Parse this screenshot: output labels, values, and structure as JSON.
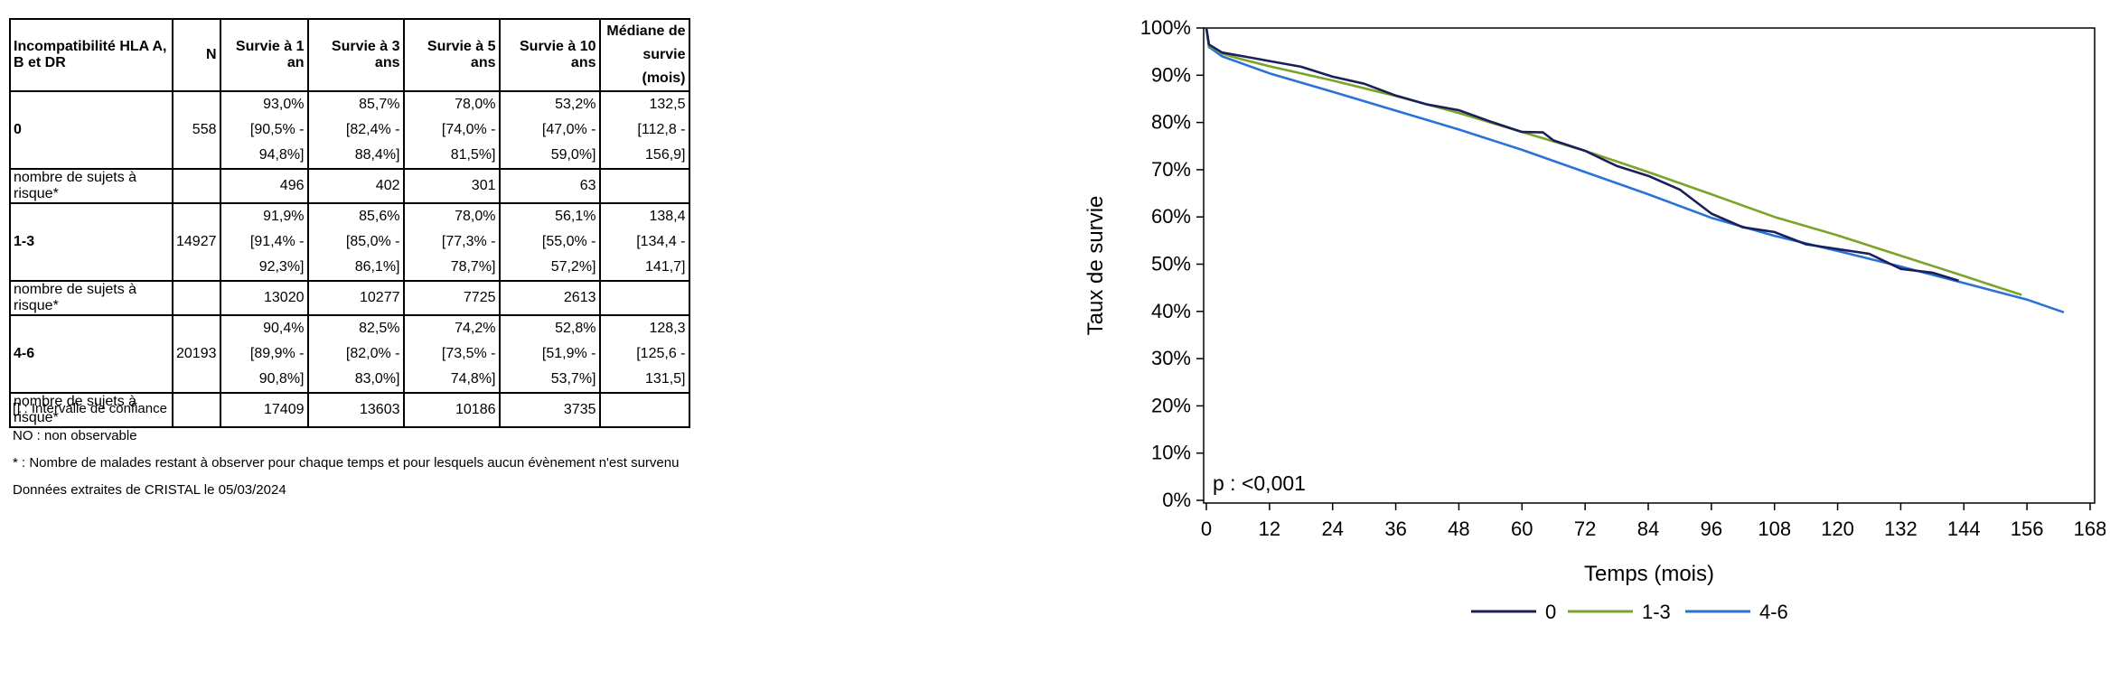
{
  "table": {
    "headers": [
      "Incompatibilité HLA A, B et DR",
      "N",
      "Survie à 1 an",
      "Survie à 3 ans",
      "Survie à 5 ans",
      "Survie à 10 ans",
      "Médiane de survie (mois)"
    ],
    "groups": [
      {
        "label": "0",
        "n": "558",
        "survival": [
          "93,0%",
          "85,7%",
          "78,0%",
          "53,2%",
          "132,5"
        ],
        "ci": [
          "[90,5% - 94,8%]",
          "[82,4% - 88,4%]",
          "[74,0% - 81,5%]",
          "[47,0% - 59,0%]",
          "[112,8 - 156,9]"
        ],
        "risk_label": "nombre de sujets à risque*",
        "at_risk": [
          "496",
          "402",
          "301",
          "63"
        ]
      },
      {
        "label": "1-3",
        "n": "14927",
        "survival": [
          "91,9%",
          "85,6%",
          "78,0%",
          "56,1%",
          "138,4"
        ],
        "ci": [
          "[91,4% - 92,3%]",
          "[85,0% - 86,1%]",
          "[77,3% - 78,7%]",
          "[55,0% - 57,2%]",
          "[134,4 - 141,7]"
        ],
        "risk_label": "nombre de sujets à risque*",
        "at_risk": [
          "13020",
          "10277",
          "7725",
          "2613"
        ]
      },
      {
        "label": "4-6",
        "n": "20193",
        "survival": [
          "90,4%",
          "82,5%",
          "74,2%",
          "52,8%",
          "128,3"
        ],
        "ci": [
          "[89,9% - 90,8%]",
          "[82,0% - 83,0%]",
          "[73,5% - 74,8%]",
          "[51,9% - 53,7%]",
          "[125,6 - 131,5]"
        ],
        "risk_label": "nombre de sujets à risque*",
        "at_risk": [
          "17409",
          "13603",
          "10186",
          "3735"
        ]
      }
    ]
  },
  "notes": [
    "[] : Intervalle de confiance",
    "NO : non observable",
    "* : Nombre de malades restant à observer pour chaque temps et pour lesquels aucun évènement n'est survenu",
    "Données extraites de CRISTAL le 05/03/2024"
  ],
  "chart_data": {
    "type": "line",
    "xlabel": "Temps (mois)",
    "ylabel": "Taux de survie",
    "xlim": [
      0,
      168
    ],
    "ylim": [
      0,
      100
    ],
    "x_ticks": [
      0,
      12,
      24,
      36,
      48,
      60,
      72,
      84,
      96,
      108,
      120,
      132,
      144,
      156,
      168
    ],
    "y_ticks": [
      "0%",
      "10%",
      "20%",
      "30%",
      "40%",
      "50%",
      "60%",
      "70%",
      "80%",
      "90%",
      "100%"
    ],
    "annotation": "p : <0,001",
    "grid": false,
    "legend_position": "bottom",
    "series": [
      {
        "name": "0",
        "color": "#1a1f5c",
        "points": [
          [
            0,
            100
          ],
          [
            0.5,
            96.5
          ],
          [
            3,
            94.8
          ],
          [
            8,
            93.8
          ],
          [
            12,
            93.0
          ],
          [
            18,
            91.8
          ],
          [
            24,
            89.7
          ],
          [
            30,
            88.2
          ],
          [
            36,
            85.7
          ],
          [
            42,
            83.8
          ],
          [
            48,
            82.6
          ],
          [
            54,
            80.2
          ],
          [
            60,
            78.0
          ],
          [
            64,
            77.9
          ],
          [
            66,
            76.2
          ],
          [
            72,
            74.0
          ],
          [
            78,
            70.8
          ],
          [
            84,
            68.7
          ],
          [
            90,
            65.8
          ],
          [
            96,
            60.7
          ],
          [
            102,
            57.8
          ],
          [
            108,
            56.8
          ],
          [
            114,
            54.2
          ],
          [
            120,
            53.2
          ],
          [
            126,
            52.2
          ],
          [
            132,
            49.0
          ],
          [
            138,
            48.2
          ],
          [
            143,
            46.5
          ]
        ]
      },
      {
        "name": "1-3",
        "color": "#7aa428",
        "points": [
          [
            0,
            100
          ],
          [
            0.5,
            96.3
          ],
          [
            3,
            94.6
          ],
          [
            6,
            93.6
          ],
          [
            12,
            91.9
          ],
          [
            24,
            88.9
          ],
          [
            36,
            85.6
          ],
          [
            48,
            82.0
          ],
          [
            60,
            78.0
          ],
          [
            72,
            74.0
          ],
          [
            84,
            69.5
          ],
          [
            96,
            64.8
          ],
          [
            108,
            60.0
          ],
          [
            120,
            56.1
          ],
          [
            132,
            51.8
          ],
          [
            144,
            47.5
          ],
          [
            150,
            45.3
          ],
          [
            155,
            43.5
          ]
        ]
      },
      {
        "name": "4-6",
        "color": "#2a73d6",
        "points": [
          [
            0,
            100
          ],
          [
            0.5,
            96.0
          ],
          [
            3,
            94.0
          ],
          [
            6,
            92.8
          ],
          [
            12,
            90.4
          ],
          [
            24,
            86.5
          ],
          [
            36,
            82.5
          ],
          [
            48,
            78.5
          ],
          [
            60,
            74.2
          ],
          [
            72,
            69.5
          ],
          [
            84,
            64.8
          ],
          [
            96,
            59.8
          ],
          [
            108,
            56.0
          ],
          [
            120,
            52.8
          ],
          [
            132,
            49.5
          ],
          [
            144,
            46.0
          ],
          [
            156,
            42.5
          ],
          [
            163,
            39.8
          ]
        ]
      }
    ]
  }
}
